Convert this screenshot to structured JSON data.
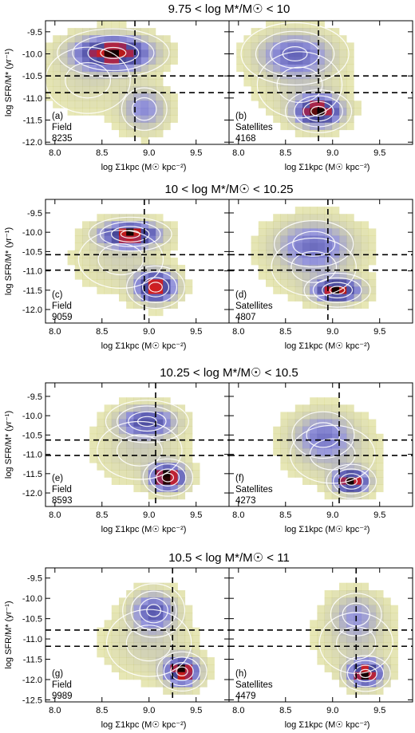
{
  "figure": {
    "colors": {
      "background": "#ffffff",
      "low_density": "#c8c832",
      "mid_density": "#7878d2",
      "high_density": "#d21e1e",
      "peak_density": "#140000",
      "contour": "#ffffff",
      "divider": "#000000"
    }
  },
  "chart_data": [
    {
      "type": "heatmap",
      "row_title": "9.75 < log M*/M☉ < 10",
      "ylabel": "log SFR/M* (yr⁻¹)",
      "xlabel": "log Σ1kpc (M☉ kpc⁻²)",
      "xlim": [
        7.9,
        9.85
      ],
      "ylim": [
        -12.05,
        -9.25
      ],
      "xticks": [
        "8.0",
        "8.5",
        "9.0",
        "9.5"
      ],
      "yticks": [
        "-9.5",
        "-10.0",
        "-10.5",
        "-11.0",
        "-11.5",
        "-12.0"
      ],
      "vertical_line": 8.85,
      "horizontal_lines": [
        -10.5,
        -10.88
      ],
      "panels": [
        {
          "letter": "(a)",
          "sample": "Field",
          "count": "8235",
          "components": [
            {
              "x": 8.62,
              "y": -9.98,
              "sx": 0.27,
              "sy": 0.25,
              "w": 1.0
            },
            {
              "x": 8.95,
              "y": -11.25,
              "sx": 0.16,
              "sy": 0.32,
              "w": 0.4
            },
            {
              "x": 8.35,
              "y": -10.6,
              "sx": 0.3,
              "sy": 0.5,
              "w": 0.12
            }
          ]
        },
        {
          "letter": "(b)",
          "sample": "Satellites",
          "count": "4168",
          "components": [
            {
              "x": 8.85,
              "y": -11.3,
              "sx": 0.16,
              "sy": 0.22,
              "w": 1.0
            },
            {
              "x": 8.6,
              "y": -10.0,
              "sx": 0.26,
              "sy": 0.32,
              "w": 0.5
            },
            {
              "x": 8.65,
              "y": -10.7,
              "sx": 0.3,
              "sy": 0.5,
              "w": 0.15
            }
          ]
        }
      ]
    },
    {
      "type": "heatmap",
      "row_title": "10 < log M*/M☉ < 10.25",
      "ylabel": "log SFR/M* (yr⁻¹)",
      "xlabel": "log Σ1kpc (M☉ kpc⁻²)",
      "xlim": [
        7.9,
        9.85
      ],
      "ylim": [
        -12.35,
        -9.15
      ],
      "xticks": [
        "8.0",
        "8.5",
        "9.0",
        "9.5"
      ],
      "yticks": [
        "-9.5",
        "-10.0",
        "-10.5",
        "-11.0",
        "-11.5",
        "-12.0"
      ],
      "vertical_line": 8.95,
      "horizontal_lines": [
        -10.58,
        -10.98
      ],
      "panels": [
        {
          "letter": "(c)",
          "sample": "Field",
          "count": "9059",
          "components": [
            {
              "x": 8.8,
              "y": -10.05,
              "sx": 0.2,
              "sy": 0.2,
              "w": 1.0
            },
            {
              "x": 9.07,
              "y": -11.42,
              "sx": 0.14,
              "sy": 0.25,
              "w": 1.0
            },
            {
              "x": 8.7,
              "y": -10.7,
              "sx": 0.3,
              "sy": 0.5,
              "w": 0.15
            }
          ]
        },
        {
          "letter": "(d)",
          "sample": "Satellites",
          "count": "4807",
          "components": [
            {
              "x": 9.05,
              "y": -11.5,
              "sx": 0.16,
              "sy": 0.2,
              "w": 1.0
            },
            {
              "x": 8.8,
              "y": -10.3,
              "sx": 0.28,
              "sy": 0.4,
              "w": 0.45
            },
            {
              "x": 8.8,
              "y": -10.9,
              "sx": 0.3,
              "sy": 0.5,
              "w": 0.15
            }
          ]
        }
      ]
    },
    {
      "type": "heatmap",
      "row_title": "10.25 < log M*/M☉ < 10.5",
      "ylabel": "log SFR/M* (yr⁻¹)",
      "xlabel": "log Σ1kpc (M☉ kpc⁻²)",
      "xlim": [
        7.9,
        9.85
      ],
      "ylim": [
        -12.35,
        -9.15
      ],
      "xticks": [
        "8.0",
        "8.5",
        "9.0",
        "9.5"
      ],
      "yticks": [
        "-9.5",
        "-10.0",
        "-10.5",
        "-11.0",
        "-11.5",
        "-12.0"
      ],
      "vertical_line": 9.07,
      "horizontal_lines": [
        -10.63,
        -11.03
      ],
      "panels": [
        {
          "letter": "(e)",
          "sample": "Field",
          "count": "8593",
          "components": [
            {
              "x": 9.2,
              "y": -11.6,
              "sx": 0.12,
              "sy": 0.22,
              "w": 1.0
            },
            {
              "x": 8.98,
              "y": -10.15,
              "sx": 0.2,
              "sy": 0.25,
              "w": 0.6
            },
            {
              "x": 8.9,
              "y": -10.9,
              "sx": 0.3,
              "sy": 0.5,
              "w": 0.15
            }
          ]
        },
        {
          "letter": "(f)",
          "sample": "Satellites",
          "count": "4273",
          "components": [
            {
              "x": 9.2,
              "y": -11.7,
              "sx": 0.12,
              "sy": 0.2,
              "w": 1.0
            },
            {
              "x": 8.9,
              "y": -10.5,
              "sx": 0.22,
              "sy": 0.4,
              "w": 0.4
            },
            {
              "x": 9.0,
              "y": -11.0,
              "sx": 0.3,
              "sy": 0.5,
              "w": 0.15
            }
          ]
        }
      ]
    },
    {
      "type": "heatmap",
      "row_title": "10.5 < log M*/M☉ < 11",
      "ylabel": "log SFR/M* (yr⁻¹)",
      "xlabel": "log Σ1kpc (M☉ kpc⁻²)",
      "xlim": [
        7.9,
        9.85
      ],
      "ylim": [
        -12.55,
        -9.25
      ],
      "xticks": [
        "8.0",
        "8.5",
        "9.0",
        "9.5"
      ],
      "yticks": [
        "-9.5",
        "-10.0",
        "-10.5",
        "-11.0",
        "-11.5",
        "-12.0",
        "-12.5"
      ],
      "vertical_line": 9.25,
      "horizontal_lines": [
        -10.78,
        -11.18
      ],
      "panels": [
        {
          "letter": "(g)",
          "sample": "Field",
          "count": "9989",
          "components": [
            {
              "x": 9.35,
              "y": -11.8,
              "sx": 0.12,
              "sy": 0.22,
              "w": 1.0
            },
            {
              "x": 9.05,
              "y": -10.3,
              "sx": 0.15,
              "sy": 0.3,
              "w": 0.55
            },
            {
              "x": 9.0,
              "y": -11.1,
              "sx": 0.3,
              "sy": 0.55,
              "w": 0.15
            }
          ]
        },
        {
          "letter": "(h)",
          "sample": "Satellites",
          "count": "4479",
          "components": [
            {
              "x": 9.35,
              "y": -11.85,
              "sx": 0.12,
              "sy": 0.2,
              "w": 1.0
            },
            {
              "x": 9.25,
              "y": -10.4,
              "sx": 0.18,
              "sy": 0.35,
              "w": 0.3
            },
            {
              "x": 9.25,
              "y": -11.1,
              "sx": 0.26,
              "sy": 0.5,
              "w": 0.15
            }
          ]
        }
      ]
    }
  ]
}
